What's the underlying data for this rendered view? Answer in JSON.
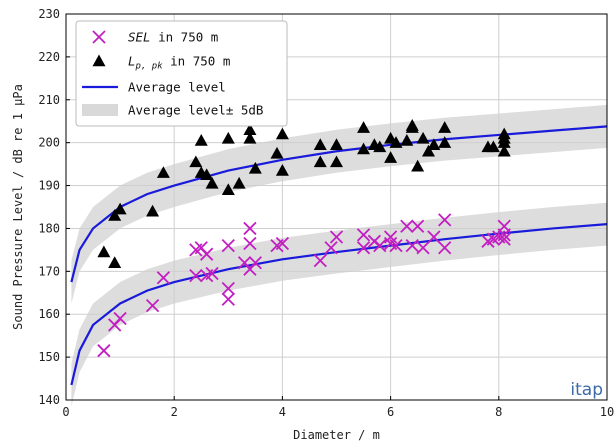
{
  "chart_data": {
    "type": "scatter",
    "xlabel": "Diameter / m",
    "ylabel": "Sound Pressure Level / dB re 1 μPa",
    "xlim": [
      0,
      10
    ],
    "ylim": [
      140,
      230
    ],
    "xticks": [
      0,
      2,
      4,
      6,
      8,
      10
    ],
    "yticks": [
      140,
      150,
      160,
      170,
      180,
      190,
      200,
      210,
      220,
      230
    ],
    "grid": true,
    "legend_position": "top-left",
    "watermark": "itap",
    "colors": {
      "sel": "#c21ec2",
      "lpk": "#000000",
      "average": "#1a1adb",
      "band": "#d9d9d9",
      "watermark": "#3c6aa8"
    },
    "legend": [
      {
        "id": "sel",
        "symbol": "x",
        "label_italic": "SEL",
        "label_rest": " in 750 m"
      },
      {
        "id": "lpk",
        "symbol": "triangle",
        "label_italic": "L",
        "label_sub": "p, pk",
        "label_rest": " in 750 m"
      },
      {
        "id": "average",
        "symbol": "line",
        "label": "Average level"
      },
      {
        "id": "band",
        "symbol": "band",
        "label": "Average level± 5dB"
      }
    ],
    "series": [
      {
        "name": "SEL in 750 m",
        "marker": "x",
        "points": [
          [
            0.7,
            151.5
          ],
          [
            0.9,
            157.5
          ],
          [
            1.0,
            159
          ],
          [
            1.6,
            162
          ],
          [
            1.8,
            168.5
          ],
          [
            2.4,
            169
          ],
          [
            2.4,
            175
          ],
          [
            2.5,
            175.5
          ],
          [
            2.6,
            174
          ],
          [
            2.6,
            169
          ],
          [
            2.7,
            169.5
          ],
          [
            3.0,
            166
          ],
          [
            3.0,
            163.5
          ],
          [
            3.0,
            176
          ],
          [
            3.3,
            172
          ],
          [
            3.4,
            170.5
          ],
          [
            3.4,
            176.5
          ],
          [
            3.4,
            180
          ],
          [
            3.5,
            172
          ],
          [
            3.9,
            176
          ],
          [
            4.0,
            176.5
          ],
          [
            4.7,
            172.5
          ],
          [
            4.9,
            175.5
          ],
          [
            5.0,
            178
          ],
          [
            5.5,
            178.5
          ],
          [
            5.5,
            175.5
          ],
          [
            5.7,
            177
          ],
          [
            5.8,
            176
          ],
          [
            6.0,
            176.5
          ],
          [
            6.0,
            178
          ],
          [
            6.1,
            176
          ],
          [
            6.3,
            180.5
          ],
          [
            6.4,
            176
          ],
          [
            6.5,
            180.5
          ],
          [
            6.6,
            175.5
          ],
          [
            6.8,
            178
          ],
          [
            7.0,
            182
          ],
          [
            7.0,
            175.5
          ],
          [
            7.8,
            177
          ],
          [
            7.9,
            177.5
          ],
          [
            8.0,
            178
          ],
          [
            8.1,
            180.5
          ],
          [
            8.1,
            178.5
          ],
          [
            8.1,
            177.5
          ]
        ]
      },
      {
        "name": "L_p,pk in 750 m",
        "marker": "triangle",
        "points": [
          [
            0.7,
            174.5
          ],
          [
            0.9,
            172
          ],
          [
            0.9,
            183
          ],
          [
            1.0,
            184.5
          ],
          [
            1.6,
            184
          ],
          [
            1.8,
            193
          ],
          [
            2.4,
            195.5
          ],
          [
            2.5,
            193
          ],
          [
            2.5,
            200.5
          ],
          [
            2.6,
            192.5
          ],
          [
            2.7,
            190.5
          ],
          [
            3.0,
            189
          ],
          [
            3.0,
            201
          ],
          [
            3.2,
            190.5
          ],
          [
            3.4,
            201
          ],
          [
            3.4,
            203
          ],
          [
            3.5,
            194
          ],
          [
            3.9,
            197.5
          ],
          [
            4.0,
            193.5
          ],
          [
            4.0,
            202
          ],
          [
            4.7,
            199.5
          ],
          [
            4.7,
            195.5
          ],
          [
            5.0,
            195.5
          ],
          [
            5.0,
            199.5
          ],
          [
            5.5,
            203.5
          ],
          [
            5.5,
            198.5
          ],
          [
            5.7,
            199.5
          ],
          [
            5.8,
            199
          ],
          [
            6.0,
            196.5
          ],
          [
            6.0,
            201
          ],
          [
            6.1,
            200
          ],
          [
            6.3,
            200.5
          ],
          [
            6.4,
            204
          ],
          [
            6.4,
            203.5
          ],
          [
            6.5,
            194.5
          ],
          [
            6.6,
            201
          ],
          [
            6.7,
            198
          ],
          [
            6.8,
            199.5
          ],
          [
            7.0,
            203.5
          ],
          [
            7.0,
            200
          ],
          [
            7.8,
            199
          ],
          [
            7.9,
            199
          ],
          [
            8.1,
            201
          ],
          [
            8.1,
            200
          ],
          [
            8.1,
            198
          ],
          [
            8.1,
            202
          ]
        ]
      }
    ],
    "curves": [
      {
        "name": "Average level",
        "x": [
          0.1,
          0.25,
          0.5,
          1,
          1.5,
          2,
          3,
          4,
          5,
          6,
          7,
          8,
          9,
          10
        ],
        "y": [
          167.5,
          175,
          180,
          185,
          188,
          190,
          193.5,
          196,
          198,
          199.5,
          200.8,
          201.8,
          202.8,
          203.8
        ]
      },
      {
        "name": "Average level",
        "x": [
          0.1,
          0.25,
          0.5,
          1,
          1.5,
          2,
          3,
          4,
          5,
          6,
          7,
          8,
          9,
          10
        ],
        "y": [
          143.5,
          151.5,
          157.5,
          162.5,
          165.5,
          167.5,
          170.5,
          172.8,
          174.5,
          176,
          177.5,
          178.8,
          180,
          181
        ]
      }
    ],
    "band_halfwidth_db": 5
  }
}
